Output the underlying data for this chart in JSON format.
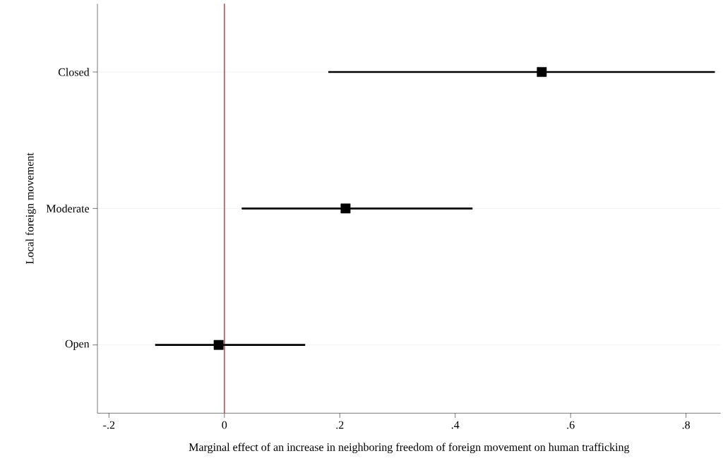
{
  "chart_data": {
    "type": "scatter",
    "orientation": "horizontal",
    "xlabel": "Marginal effect of an increase in neighboring freedom of foreign movement on human trafficking",
    "ylabel": "Local foreign movement",
    "categories": [
      "Closed",
      "Moderate",
      "Open"
    ],
    "values": [
      0.55,
      0.21,
      -0.01
    ],
    "errors": [
      [
        0.18,
        0.85
      ],
      [
        0.03,
        0.43
      ],
      [
        -0.12,
        0.14
      ]
    ],
    "color": "#000000",
    "marker": "square",
    "xlim": [
      -0.22,
      0.86
    ],
    "xticks": [
      {
        "value": -0.2,
        "label": "-.2"
      },
      0,
      {
        "value": 0.2,
        "label": ".2"
      },
      {
        "value": 0.4,
        "label": ".4"
      },
      {
        "value": 0.6,
        "label": ".6"
      },
      {
        "value": 0.8,
        "label": ".8"
      }
    ],
    "ref_lines": [
      {
        "axis": "x",
        "value": 0,
        "color": "#d0202e"
      }
    ],
    "grid": "y"
  }
}
